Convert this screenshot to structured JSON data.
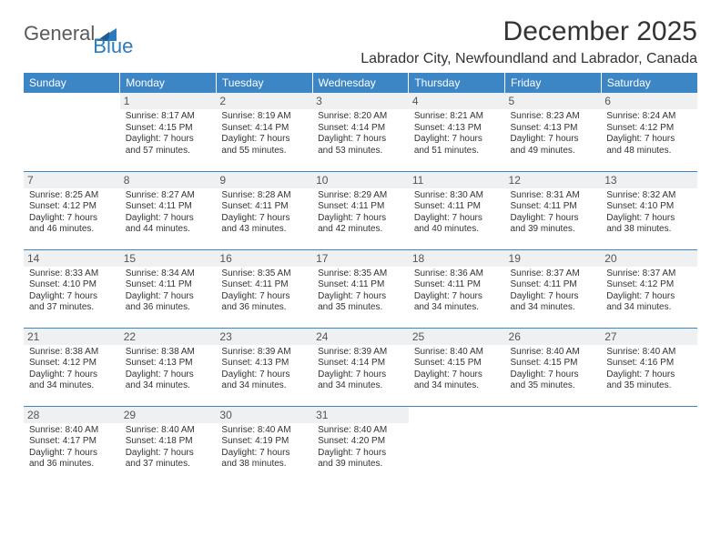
{
  "logo": {
    "text1": "General",
    "text2": "Blue"
  },
  "header": {
    "month_title": "December 2025",
    "location": "Labrador City, Newfoundland and Labrador, Canada"
  },
  "colors": {
    "header_bg": "#3d86c6",
    "header_fg": "#ffffff",
    "daynum_bg": "#eef0f2",
    "border": "#3d86c6",
    "logo_blue": "#2b7bbf",
    "text": "#333333",
    "page_bg": "#ffffff"
  },
  "day_headers": [
    "Sunday",
    "Monday",
    "Tuesday",
    "Wednesday",
    "Thursday",
    "Friday",
    "Saturday"
  ],
  "weeks": [
    [
      {
        "n": "",
        "sr": "",
        "ss": "",
        "dl": ""
      },
      {
        "n": "1",
        "sr": "Sunrise: 8:17 AM",
        "ss": "Sunset: 4:15 PM",
        "dl": "Daylight: 7 hours and 57 minutes."
      },
      {
        "n": "2",
        "sr": "Sunrise: 8:19 AM",
        "ss": "Sunset: 4:14 PM",
        "dl": "Daylight: 7 hours and 55 minutes."
      },
      {
        "n": "3",
        "sr": "Sunrise: 8:20 AM",
        "ss": "Sunset: 4:14 PM",
        "dl": "Daylight: 7 hours and 53 minutes."
      },
      {
        "n": "4",
        "sr": "Sunrise: 8:21 AM",
        "ss": "Sunset: 4:13 PM",
        "dl": "Daylight: 7 hours and 51 minutes."
      },
      {
        "n": "5",
        "sr": "Sunrise: 8:23 AM",
        "ss": "Sunset: 4:13 PM",
        "dl": "Daylight: 7 hours and 49 minutes."
      },
      {
        "n": "6",
        "sr": "Sunrise: 8:24 AM",
        "ss": "Sunset: 4:12 PM",
        "dl": "Daylight: 7 hours and 48 minutes."
      }
    ],
    [
      {
        "n": "7",
        "sr": "Sunrise: 8:25 AM",
        "ss": "Sunset: 4:12 PM",
        "dl": "Daylight: 7 hours and 46 minutes."
      },
      {
        "n": "8",
        "sr": "Sunrise: 8:27 AM",
        "ss": "Sunset: 4:11 PM",
        "dl": "Daylight: 7 hours and 44 minutes."
      },
      {
        "n": "9",
        "sr": "Sunrise: 8:28 AM",
        "ss": "Sunset: 4:11 PM",
        "dl": "Daylight: 7 hours and 43 minutes."
      },
      {
        "n": "10",
        "sr": "Sunrise: 8:29 AM",
        "ss": "Sunset: 4:11 PM",
        "dl": "Daylight: 7 hours and 42 minutes."
      },
      {
        "n": "11",
        "sr": "Sunrise: 8:30 AM",
        "ss": "Sunset: 4:11 PM",
        "dl": "Daylight: 7 hours and 40 minutes."
      },
      {
        "n": "12",
        "sr": "Sunrise: 8:31 AM",
        "ss": "Sunset: 4:11 PM",
        "dl": "Daylight: 7 hours and 39 minutes."
      },
      {
        "n": "13",
        "sr": "Sunrise: 8:32 AM",
        "ss": "Sunset: 4:10 PM",
        "dl": "Daylight: 7 hours and 38 minutes."
      }
    ],
    [
      {
        "n": "14",
        "sr": "Sunrise: 8:33 AM",
        "ss": "Sunset: 4:10 PM",
        "dl": "Daylight: 7 hours and 37 minutes."
      },
      {
        "n": "15",
        "sr": "Sunrise: 8:34 AM",
        "ss": "Sunset: 4:11 PM",
        "dl": "Daylight: 7 hours and 36 minutes."
      },
      {
        "n": "16",
        "sr": "Sunrise: 8:35 AM",
        "ss": "Sunset: 4:11 PM",
        "dl": "Daylight: 7 hours and 36 minutes."
      },
      {
        "n": "17",
        "sr": "Sunrise: 8:35 AM",
        "ss": "Sunset: 4:11 PM",
        "dl": "Daylight: 7 hours and 35 minutes."
      },
      {
        "n": "18",
        "sr": "Sunrise: 8:36 AM",
        "ss": "Sunset: 4:11 PM",
        "dl": "Daylight: 7 hours and 34 minutes."
      },
      {
        "n": "19",
        "sr": "Sunrise: 8:37 AM",
        "ss": "Sunset: 4:11 PM",
        "dl": "Daylight: 7 hours and 34 minutes."
      },
      {
        "n": "20",
        "sr": "Sunrise: 8:37 AM",
        "ss": "Sunset: 4:12 PM",
        "dl": "Daylight: 7 hours and 34 minutes."
      }
    ],
    [
      {
        "n": "21",
        "sr": "Sunrise: 8:38 AM",
        "ss": "Sunset: 4:12 PM",
        "dl": "Daylight: 7 hours and 34 minutes."
      },
      {
        "n": "22",
        "sr": "Sunrise: 8:38 AM",
        "ss": "Sunset: 4:13 PM",
        "dl": "Daylight: 7 hours and 34 minutes."
      },
      {
        "n": "23",
        "sr": "Sunrise: 8:39 AM",
        "ss": "Sunset: 4:13 PM",
        "dl": "Daylight: 7 hours and 34 minutes."
      },
      {
        "n": "24",
        "sr": "Sunrise: 8:39 AM",
        "ss": "Sunset: 4:14 PM",
        "dl": "Daylight: 7 hours and 34 minutes."
      },
      {
        "n": "25",
        "sr": "Sunrise: 8:40 AM",
        "ss": "Sunset: 4:15 PM",
        "dl": "Daylight: 7 hours and 34 minutes."
      },
      {
        "n": "26",
        "sr": "Sunrise: 8:40 AM",
        "ss": "Sunset: 4:15 PM",
        "dl": "Daylight: 7 hours and 35 minutes."
      },
      {
        "n": "27",
        "sr": "Sunrise: 8:40 AM",
        "ss": "Sunset: 4:16 PM",
        "dl": "Daylight: 7 hours and 35 minutes."
      }
    ],
    [
      {
        "n": "28",
        "sr": "Sunrise: 8:40 AM",
        "ss": "Sunset: 4:17 PM",
        "dl": "Daylight: 7 hours and 36 minutes."
      },
      {
        "n": "29",
        "sr": "Sunrise: 8:40 AM",
        "ss": "Sunset: 4:18 PM",
        "dl": "Daylight: 7 hours and 37 minutes."
      },
      {
        "n": "30",
        "sr": "Sunrise: 8:40 AM",
        "ss": "Sunset: 4:19 PM",
        "dl": "Daylight: 7 hours and 38 minutes."
      },
      {
        "n": "31",
        "sr": "Sunrise: 8:40 AM",
        "ss": "Sunset: 4:20 PM",
        "dl": "Daylight: 7 hours and 39 minutes."
      },
      {
        "n": "",
        "sr": "",
        "ss": "",
        "dl": ""
      },
      {
        "n": "",
        "sr": "",
        "ss": "",
        "dl": ""
      },
      {
        "n": "",
        "sr": "",
        "ss": "",
        "dl": ""
      }
    ]
  ]
}
